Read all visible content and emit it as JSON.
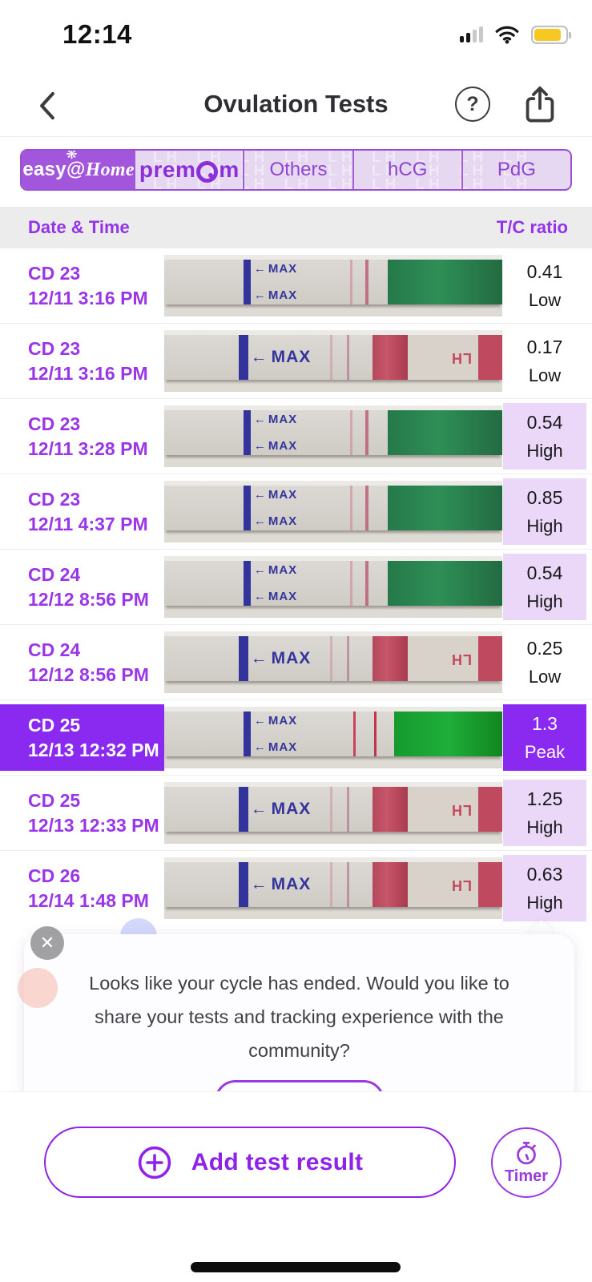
{
  "status_bar": {
    "time": "12:14",
    "battery_color": "#f6c821"
  },
  "nav": {
    "title": "Ovulation Tests"
  },
  "tabs": [
    {
      "label": "easy@Home",
      "selected": true
    },
    {
      "label": "premom",
      "selected": false
    },
    {
      "label": "Others",
      "selected": false
    },
    {
      "label": "hCG",
      "selected": false
    },
    {
      "label": "PdG",
      "selected": false
    }
  ],
  "table": {
    "col_date": "Date & Time",
    "col_ratio": "T/C ratio"
  },
  "rows": [
    {
      "cd": "CD 23",
      "datetime": "12/11 3:16 PM",
      "ratio": "0.41",
      "level": "Low",
      "highlight": "none",
      "strip": "green"
    },
    {
      "cd": "CD 23",
      "datetime": "12/11 3:16 PM",
      "ratio": "0.17",
      "level": "Low",
      "highlight": "none",
      "strip": "red"
    },
    {
      "cd": "CD 23",
      "datetime": "12/11 3:28 PM",
      "ratio": "0.54",
      "level": "High",
      "highlight": "high",
      "strip": "green"
    },
    {
      "cd": "CD 23",
      "datetime": "12/11 4:37 PM",
      "ratio": "0.85",
      "level": "High",
      "highlight": "high",
      "strip": "green"
    },
    {
      "cd": "CD 24",
      "datetime": "12/12 8:56 PM",
      "ratio": "0.54",
      "level": "High",
      "highlight": "high",
      "strip": "green"
    },
    {
      "cd": "CD 24",
      "datetime": "12/12 8:56 PM",
      "ratio": "0.25",
      "level": "Low",
      "highlight": "none",
      "strip": "red"
    },
    {
      "cd": "CD 25",
      "datetime": "12/13 12:32 PM",
      "ratio": "1.3",
      "level": "Peak",
      "highlight": "peak",
      "strip": "green-bright"
    },
    {
      "cd": "CD 25",
      "datetime": "12/13 12:33 PM",
      "ratio": "1.25",
      "level": "High",
      "highlight": "high",
      "strip": "red"
    },
    {
      "cd": "CD 26",
      "datetime": "12/14 1:48 PM",
      "ratio": "0.63",
      "level": "High",
      "highlight": "high",
      "strip": "red"
    }
  ],
  "strip_text": {
    "max": "MAX",
    "lh": "LH"
  },
  "banner": {
    "message": "Looks like your cycle has ended. Would you like to share your tests and tracking experience with the community?",
    "close_icon": "✕"
  },
  "bottom": {
    "add_label": "Add test result",
    "timer_label": "Timer"
  },
  "colors": {
    "accent": "#9a35e8",
    "peak_bg": "#8a2af0",
    "high_bg": "#ebd7f8",
    "selected_tab_bg": "#a156dc"
  }
}
